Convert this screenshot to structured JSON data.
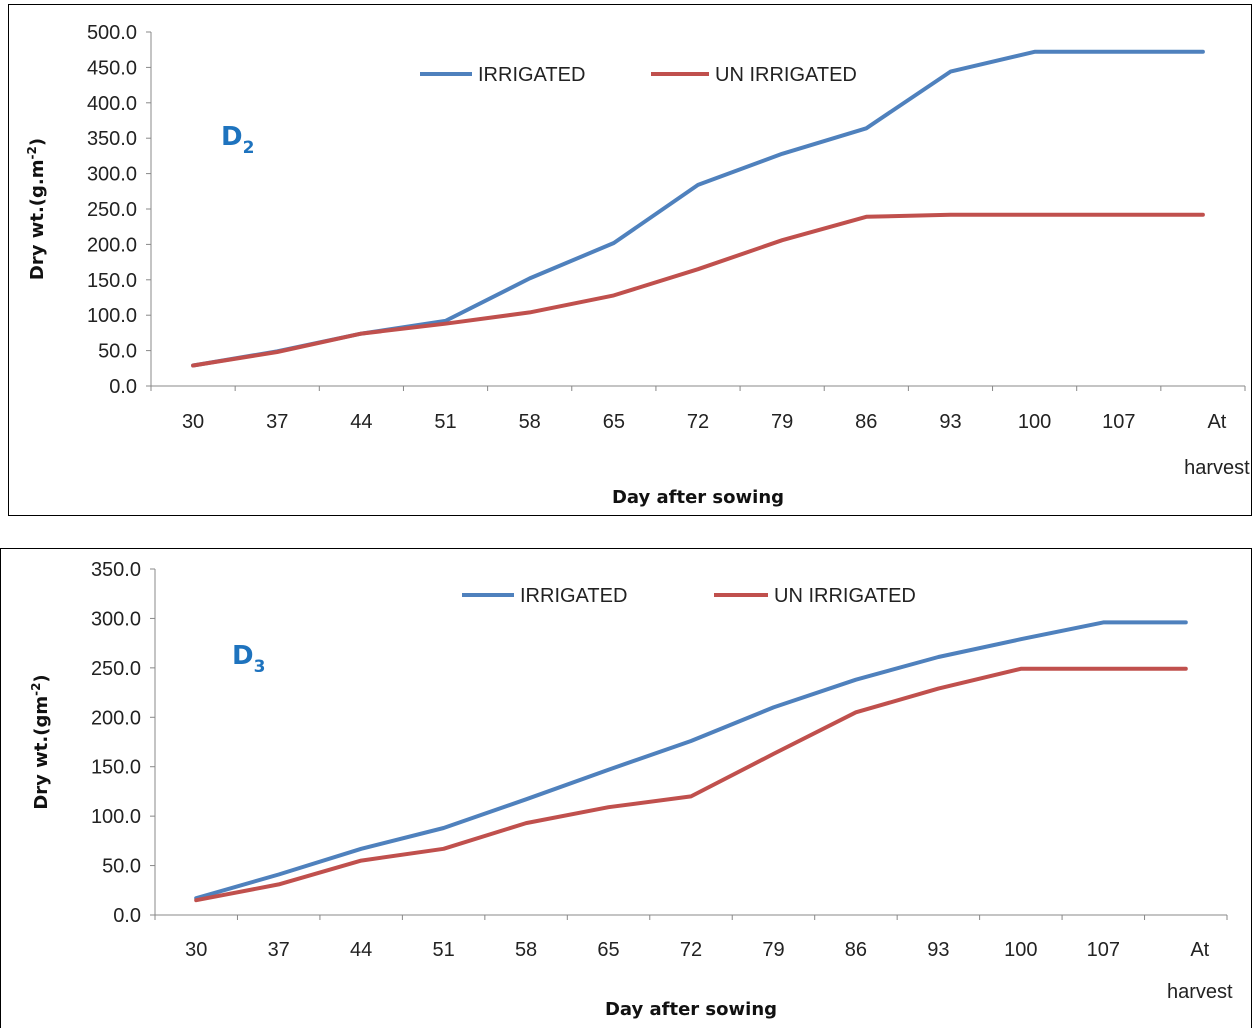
{
  "chart_data": [
    {
      "type": "line",
      "panel_label": "D",
      "panel_subscript": "2",
      "xlabel": "Day after sowing",
      "ylabel": "Dry wt.(g.m",
      "ylabel_sup": "-2",
      "ylabel_end": ")",
      "categories": [
        "30",
        "37",
        "44",
        "51",
        "58",
        "65",
        "72",
        "79",
        "86",
        "93",
        "100",
        "107",
        "At harvest"
      ],
      "ylim": [
        0,
        500
      ],
      "ytick_step": 50,
      "ytick_labels": [
        "0.0",
        "50.0",
        "100.0",
        "150.0",
        "200.0",
        "250.0",
        "300.0",
        "350.0",
        "400.0",
        "450.0",
        "500.0"
      ],
      "legend_position": "top-center",
      "grid": false,
      "series": [
        {
          "name": "IRRIGATED",
          "color": "#4f81bd",
          "values": [
            29,
            49,
            74,
            92,
            152,
            202,
            284,
            328,
            364,
            444,
            472,
            472,
            472
          ]
        },
        {
          "name": "UN IRRIGATED",
          "color": "#c0504d",
          "values": [
            29,
            48,
            74,
            88,
            104,
            128,
            165,
            206,
            239,
            242,
            242,
            242,
            242
          ]
        }
      ]
    },
    {
      "type": "line",
      "panel_label": "D",
      "panel_subscript": "3",
      "xlabel": "Day after sowing",
      "ylabel": "Dry  wt.(gm",
      "ylabel_sup": "-2",
      "ylabel_end": ")",
      "categories": [
        "30",
        "37",
        "44",
        "51",
        "58",
        "65",
        "72",
        "79",
        "86",
        "93",
        "100",
        "107",
        "At harvest"
      ],
      "ylim": [
        0,
        350
      ],
      "ytick_step": 50,
      "ytick_labels": [
        "0.0",
        "50.0",
        "100.0",
        "150.0",
        "200.0",
        "250.0",
        "300.0",
        "350.0"
      ],
      "legend_position": "top-center",
      "grid": false,
      "series": [
        {
          "name": "IRRIGATED",
          "color": "#4f81bd",
          "values": [
            17,
            41,
            67,
            88,
            117,
            147,
            176,
            210,
            238,
            261,
            279,
            296,
            296
          ]
        },
        {
          "name": "UN IRRIGATED",
          "color": "#c0504d",
          "values": [
            15,
            31,
            55,
            67,
            93,
            109,
            120,
            163,
            205,
            229,
            249,
            249,
            249
          ]
        }
      ]
    }
  ]
}
